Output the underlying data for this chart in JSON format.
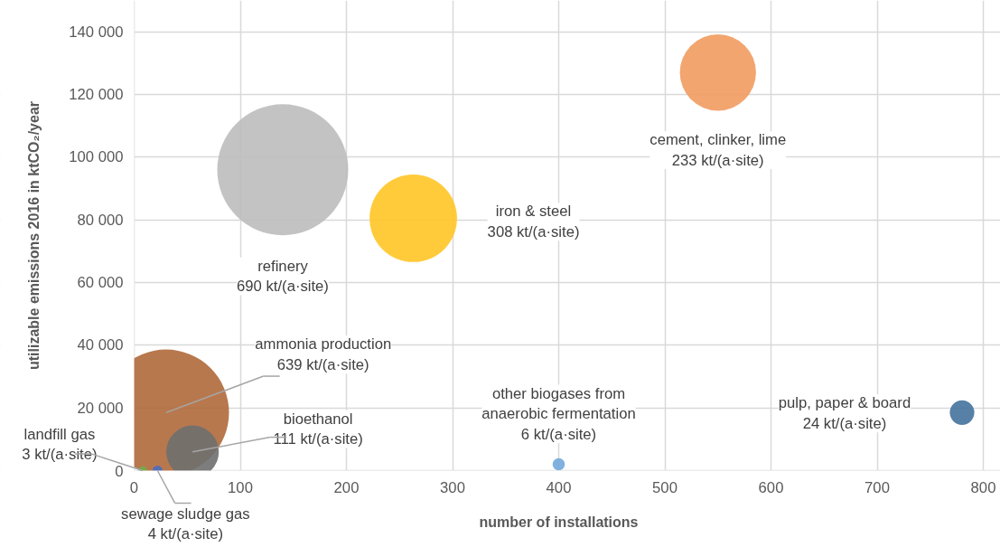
{
  "chart_data": {
    "type": "bubble",
    "xlabel": "number of installations",
    "ylabel": "utilizable emissions 2016 in ktCO₂/year",
    "x": [
      140,
      30,
      550,
      263,
      55,
      780,
      400,
      22,
      8
    ],
    "values": [
      96000,
      18500,
      127000,
      80500,
      6000,
      18500,
      2000,
      0,
      0
    ],
    "sizes": [
      1,
      0.926,
      0.338,
      0.446,
      0.161,
      0.035,
      0.0087,
      0.0058,
      0.0043
    ],
    "colors": [
      "#bdbdbd",
      "#b0693b",
      "#f19b5f",
      "#ffc526",
      "#6f6f6f",
      "#44729c",
      "#72a8dc",
      "#4a6dbd",
      "#70ad47"
    ],
    "annotations": [
      "refinery\n690 kt/(a·site)",
      {
        "text": "ammonia production\n639 kt/(a·site)",
        "x": 30,
        "y": 18500
      },
      "cement, clinker, lime\n233 kt/(a·site)",
      "iron & steel\n308 kt/(a·site)",
      {
        "text": "bioethanol\n111 kt/(a·site)",
        "x": 55,
        "y": 6000
      },
      "pulp, paper & board\n24 kt/(a·site)",
      "other biogases from\nanaerobic fermentation\n6 kt/(a·site)",
      {
        "text": "sewage sludge gas\n4 kt/(a·site)",
        "x": 22,
        "y": 0
      },
      {
        "text": "landfill gas\n3 kt/(a·site)",
        "x": 8,
        "y": 0
      }
    ],
    "xlim": [
      0,
      800
    ],
    "xticks": [
      0,
      100,
      200,
      300,
      400,
      500,
      600,
      700,
      800
    ],
    "ylim": [
      0,
      150000
    ],
    "yticks": [
      0,
      {
        "value": 20000,
        "label": "20 000"
      },
      {
        "value": 40000,
        "label": "40 000"
      },
      {
        "value": 60000,
        "label": "60 000"
      },
      {
        "value": 80000,
        "label": "80 000"
      },
      {
        "value": 100000,
        "label": "100 000"
      },
      {
        "value": 120000,
        "label": "120 000"
      },
      {
        "value": 140000,
        "label": "140 000"
      }
    ],
    "grid": true
  }
}
